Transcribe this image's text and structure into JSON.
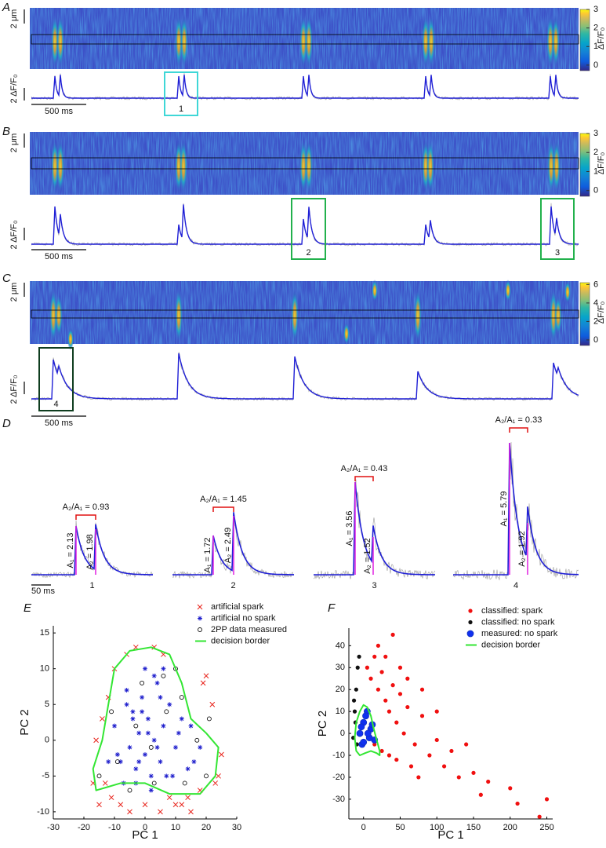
{
  "panels": [
    "A",
    "B",
    "C",
    "D",
    "E",
    "F"
  ],
  "chart_data": [
    {
      "type": "linescan",
      "scale_y_label": "2 μm",
      "trace_scale_label": "2 ΔF/F₀",
      "time_scale_label": "500 ms",
      "colorbar_label": "ΔF/F₀",
      "clim": [
        -0.3,
        3
      ],
      "cticks": [
        0,
        1,
        2,
        3
      ],
      "boxes": [
        {
          "label": "1",
          "color": "#3fd7d7"
        }
      ]
    },
    {
      "type": "linescan",
      "scale_y_label": "2 μm",
      "trace_scale_label": "2 ΔF/F₀",
      "time_scale_label": "500 ms",
      "colorbar_label": "ΔF/F₀",
      "clim": [
        -0.3,
        3
      ],
      "cticks": [
        0,
        1,
        2,
        3
      ],
      "boxes": [
        {
          "label": "2",
          "color": "#22b14c"
        },
        {
          "label": "3",
          "color": "#22b14c"
        }
      ]
    },
    {
      "type": "linescan",
      "scale_y_label": "2 μm",
      "trace_scale_label": "2 ΔF/F₀",
      "time_scale_label": "500 ms",
      "colorbar_label": "ΔF/F₀",
      "clim": [
        -0.6,
        6.2
      ],
      "cticks": [
        0,
        2,
        4,
        6
      ],
      "boxes": [
        {
          "label": "4",
          "color": "#0f3d1f"
        }
      ]
    },
    {
      "type": "spark-pairs",
      "time_scale_label": "50 ms",
      "pairs": [
        {
          "label": "1",
          "ratio": "A₂/A₁ = 0.93",
          "a1": "A₁ = 2.13",
          "a2": "A₂ = 1.98"
        },
        {
          "label": "2",
          "ratio": "A₂/A₁ = 1.45",
          "a1": "A₁ = 1.72",
          "a2": "A₂ = 2.49"
        },
        {
          "label": "3",
          "ratio": "A₂/A₁ = 0.43",
          "a1": "A₁ = 3.56",
          "a2": "A₂ = 1.52"
        },
        {
          "label": "4",
          "ratio": "A₂/A₁ = 0.33",
          "a1": "A₁ = 5.79",
          "a2": "A₂ = 1.92"
        }
      ]
    },
    {
      "type": "scatter",
      "x_label": "PC 1",
      "y_label": "PC 2",
      "xlim": [
        -30,
        30
      ],
      "ylim": [
        -11,
        16
      ],
      "xticks": [
        -30,
        -20,
        -10,
        0,
        10,
        20,
        30
      ],
      "yticks": [
        -10,
        -5,
        0,
        5,
        10,
        15
      ],
      "series": [
        {
          "name": "artificial spark",
          "marker": "x",
          "color": "#e8241c",
          "x": [
            -17,
            -15,
            -14,
            -12,
            -10,
            -6,
            -3,
            3,
            6,
            8,
            12,
            15,
            18,
            20,
            22,
            25,
            24,
            -8,
            -5,
            0,
            5,
            10,
            14,
            -13,
            19,
            23,
            -16,
            -11
          ],
          "values": [
            -6,
            -9,
            3,
            6,
            10,
            12,
            13,
            13,
            12,
            -8,
            -9,
            -10,
            -7,
            9,
            5,
            -2,
            -5,
            -9,
            -10,
            -9,
            -10,
            -9,
            -8,
            -6,
            8,
            -6,
            0,
            -8
          ]
        },
        {
          "name": "artificial no spark",
          "marker": "star",
          "color": "#1c1ccc",
          "x": [
            -10,
            -8,
            -6,
            -5,
            -4,
            -3,
            -2,
            -1,
            0,
            1,
            2,
            3,
            4,
            5,
            6,
            8,
            10,
            12,
            14,
            -7,
            -3,
            0,
            3,
            7,
            11,
            -9,
            -4,
            2,
            6,
            9,
            -2,
            1,
            4,
            -6,
            15,
            18,
            16,
            -12,
            -1,
            5
          ],
          "values": [
            2,
            -3,
            5,
            -1,
            3,
            -4,
            1,
            6,
            -2,
            3,
            -5,
            0,
            8,
            -3,
            2,
            5,
            -1,
            3,
            -4,
            -6,
            -6,
            10,
            9,
            -5,
            1,
            -2,
            4,
            -7,
            10,
            -5,
            -3,
            1,
            -1,
            7,
            2,
            -1,
            -3,
            -3,
            4,
            6
          ]
        },
        {
          "name": "2PP data measured",
          "marker": "circle-open",
          "color": "#111111",
          "x": [
            -15,
            -9,
            -5,
            -1,
            3,
            7,
            10,
            13,
            17,
            20,
            -3,
            2,
            6,
            12,
            -11,
            21
          ],
          "values": [
            -5,
            -3,
            -7,
            8,
            -6,
            4,
            10,
            -6,
            0,
            -5,
            2,
            -1,
            9,
            6,
            4,
            3
          ]
        },
        {
          "name": "decision border",
          "marker": "line",
          "color": "#33e633",
          "x": [
            2,
            8,
            12,
            15,
            20,
            24,
            23,
            18,
            8,
            0,
            -8,
            -16,
            -17,
            -14,
            -12,
            -10,
            -5
          ],
          "values": [
            13,
            12,
            8,
            3,
            1,
            -1,
            -5,
            -7.5,
            -7.5,
            -6,
            -6,
            -7,
            -4,
            0,
            5,
            10,
            12.5
          ]
        }
      ]
    },
    {
      "type": "scatter",
      "x_label": "PC 1",
      "y_label": "PC 2",
      "xlim": [
        -20,
        258
      ],
      "ylim": [
        -39,
        48
      ],
      "xticks": [
        0,
        50,
        100,
        150,
        200,
        250
      ],
      "yticks": [
        -30,
        -20,
        -10,
        0,
        10,
        20,
        30,
        40
      ],
      "series": [
        {
          "name": "classified: spark",
          "marker": "dot",
          "color": "#f01010",
          "x": [
            5,
            10,
            15,
            20,
            25,
            30,
            35,
            40,
            45,
            50,
            55,
            60,
            70,
            80,
            90,
            100,
            110,
            120,
            130,
            150,
            170,
            200,
            240,
            250,
            20,
            30,
            40,
            50,
            60,
            80,
            100,
            15,
            25,
            35,
            45,
            65,
            75,
            140,
            160,
            210
          ],
          "values": [
            30,
            25,
            35,
            20,
            28,
            15,
            10,
            22,
            5,
            18,
            0,
            12,
            -5,
            8,
            -10,
            -3,
            -15,
            -8,
            -20,
            -18,
            -22,
            -25,
            -38,
            -30,
            40,
            35,
            45,
            30,
            25,
            20,
            10,
            -5,
            -8,
            -10,
            -12,
            -15,
            -20,
            -5,
            -28,
            -32
          ]
        },
        {
          "name": "classified: no spark",
          "marker": "dot",
          "color": "#111111",
          "x": [
            -12,
            -10,
            -8,
            -14,
            -6,
            -11,
            -9,
            -13
          ],
          "values": [
            10,
            20,
            30,
            -2,
            35,
            5,
            -5,
            15
          ]
        },
        {
          "name": "measured: no spark",
          "marker": "circle-filled",
          "color": "#1030f0",
          "x": [
            -5,
            0,
            5,
            10,
            15,
            -2,
            3,
            8,
            12,
            0,
            6,
            -3
          ],
          "values": [
            0,
            5,
            10,
            2,
            -3,
            -5,
            8,
            -2,
            4,
            -4,
            0,
            3
          ]
        },
        {
          "name": "decision border",
          "marker": "line",
          "color": "#33e633",
          "x": [
            -5,
            0,
            5,
            10,
            14,
            18,
            22,
            22,
            18,
            10,
            2,
            -5,
            -10,
            -12,
            -10
          ],
          "values": [
            10,
            13,
            12,
            8,
            2,
            -3,
            -8,
            -10,
            -9,
            -8,
            -9,
            -10,
            -8,
            -2,
            5
          ]
        }
      ]
    }
  ]
}
